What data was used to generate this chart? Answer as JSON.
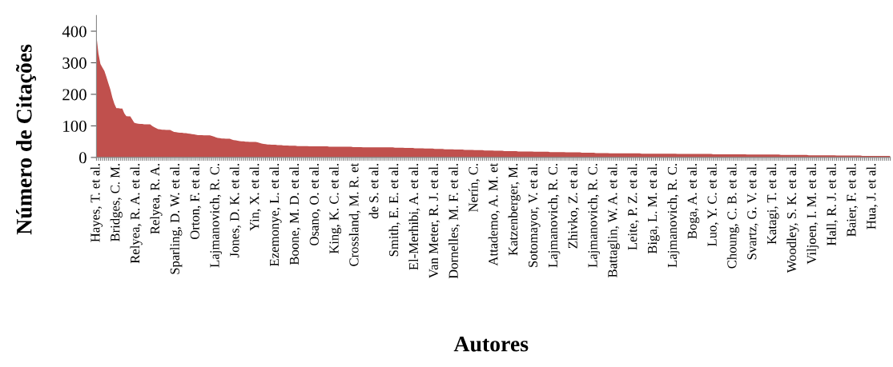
{
  "chart_data": {
    "type": "area",
    "xlabel": "Autores",
    "ylabel": "Número de Citações",
    "color": "#c0504d",
    "ylim": [
      0,
      450
    ],
    "yticks": [
      0,
      100,
      200,
      300,
      400
    ],
    "grid": false,
    "categories": [
      "Hayes, T. et al.",
      null,
      null,
      null,
      null,
      null,
      null,
      null,
      null,
      null,
      "Bridges, C. M.",
      null,
      null,
      null,
      null,
      null,
      null,
      null,
      null,
      null,
      "Relyea, R. A. et al.",
      null,
      null,
      null,
      null,
      null,
      null,
      null,
      null,
      null,
      "Relyea, R. A.",
      null,
      null,
      null,
      null,
      null,
      null,
      null,
      null,
      null,
      "Sparling, D. W. et al.",
      null,
      null,
      null,
      null,
      null,
      null,
      null,
      null,
      null,
      "Orton, F. et al.",
      null,
      null,
      null,
      null,
      null,
      null,
      null,
      null,
      null,
      "Lajmanovich, R. C.",
      null,
      null,
      null,
      null,
      null,
      null,
      null,
      null,
      null,
      "Jones, D. K. et al.",
      null,
      null,
      null,
      null,
      null,
      null,
      null,
      null,
      null,
      "Yin, X. et al.",
      null,
      null,
      null,
      null,
      null,
      null,
      null,
      null,
      null,
      "Ezemonye, L. et al.",
      null,
      null,
      null,
      null,
      null,
      null,
      null,
      null,
      null,
      "Boone, M. D. et al.",
      null,
      null,
      null,
      null,
      null,
      null,
      null,
      null,
      null,
      "Osano, O. et al.",
      null,
      null,
      null,
      null,
      null,
      null,
      null,
      null,
      null,
      "King, K. C. et al.",
      null,
      null,
      null,
      null,
      null,
      null,
      null,
      null,
      null,
      "Crossland, M. R. et",
      null,
      null,
      null,
      null,
      null,
      null,
      null,
      null,
      null,
      "de S. et al.",
      null,
      null,
      null,
      null,
      null,
      null,
      null,
      null,
      null,
      "Smith, E. E. et al.",
      null,
      null,
      null,
      null,
      null,
      null,
      null,
      null,
      null,
      "El-Merhibi, A. et al.",
      null,
      null,
      null,
      null,
      null,
      null,
      null,
      null,
      null,
      "Van Meter, R. J. et al.",
      null,
      null,
      null,
      null,
      null,
      null,
      null,
      null,
      null,
      "Dornelles, M. F. et al.",
      null,
      null,
      null,
      null,
      null,
      null,
      null,
      null,
      null,
      "Nerín, C.",
      null,
      null,
      null,
      null,
      null,
      null,
      null,
      null,
      null,
      "Attademo, A. M. et",
      null,
      null,
      null,
      null,
      null,
      null,
      null,
      null,
      null,
      "Katzenberger, M.",
      null,
      null,
      null,
      null,
      null,
      null,
      null,
      null,
      null,
      "Sotomayor, V. et al.",
      null,
      null,
      null,
      null,
      null,
      null,
      null,
      null,
      null,
      "Lajmanovich, R. C.",
      null,
      null,
      null,
      null,
      null,
      null,
      null,
      null,
      null,
      "Zhivko, Z. et al.",
      null,
      null,
      null,
      null,
      null,
      null,
      null,
      null,
      null,
      "Lajmanovich, R. C.",
      null,
      null,
      null,
      null,
      null,
      null,
      null,
      null,
      null,
      "Battaglin, W. A. et al.",
      null,
      null,
      null,
      null,
      null,
      null,
      null,
      null,
      null,
      "Leite, P. Z. et al.",
      null,
      null,
      null,
      null,
      null,
      null,
      null,
      null,
      null,
      "Biga, L. M. et al.",
      null,
      null,
      null,
      null,
      null,
      null,
      null,
      null,
      null,
      "Lajmanovich, R. C.",
      null,
      null,
      null,
      null,
      null,
      null,
      null,
      null,
      null,
      "Boga, A. et al.",
      null,
      null,
      null,
      null,
      null,
      null,
      null,
      null,
      null,
      "Luo, Y. C. et al.",
      null,
      null,
      null,
      null,
      null,
      null,
      null,
      null,
      null,
      "Choung, C. B. et al.",
      null,
      null,
      null,
      null,
      null,
      null,
      null,
      null,
      null,
      "Svartz, G. V. et al.",
      null,
      null,
      null,
      null,
      null,
      null,
      null,
      null,
      null,
      "Katagi, T. et al.",
      null,
      null,
      null,
      null,
      null,
      null,
      null,
      null,
      null,
      "Woodley, S. K. et al.",
      null,
      null,
      null,
      null,
      null,
      null,
      null,
      null,
      null,
      "Viljoen, I. M. et al.",
      null,
      null,
      null,
      null,
      null,
      null,
      null,
      null,
      null,
      "Hall, R. J. et al.",
      null,
      null,
      null,
      null,
      null,
      null,
      null,
      null,
      null,
      "Baier, F. et al.",
      null,
      null,
      null,
      null,
      null,
      null,
      null,
      null,
      null,
      "Hua, J. et al.",
      null,
      null,
      null,
      null,
      null,
      null,
      null,
      null,
      null
    ],
    "values": [
      385,
      330,
      296,
      285,
      274,
      255,
      235,
      215,
      190,
      170,
      156,
      156,
      155,
      155,
      140,
      131,
      130,
      130,
      120,
      110,
      108,
      107,
      106,
      106,
      105,
      105,
      105,
      105,
      100,
      96,
      93,
      90,
      89,
      88,
      88,
      87,
      87,
      87,
      84,
      81,
      80,
      79,
      78,
      78,
      77,
      77,
      76,
      75,
      74,
      73,
      72,
      71,
      71,
      71,
      70,
      70,
      70,
      70,
      68,
      66,
      64,
      62,
      61,
      60,
      60,
      59,
      59,
      59,
      57,
      55,
      54,
      53,
      52,
      51,
      51,
      50,
      50,
      49,
      49,
      49,
      49,
      48,
      46,
      44,
      43,
      42,
      41,
      41,
      40,
      40,
      40,
      39,
      39,
      39,
      38,
      38,
      38,
      37,
      37,
      37,
      37,
      36,
      36,
      36,
      36,
      36,
      36,
      35,
      35,
      35,
      35,
      35,
      35,
      35,
      35,
      35,
      35,
      34,
      34,
      34,
      34,
      34,
      34,
      34,
      34,
      34,
      34,
      34,
      34,
      33,
      33,
      33,
      33,
      33,
      32,
      32,
      32,
      32,
      32,
      32,
      32,
      32,
      32,
      32,
      32,
      32,
      32,
      32,
      32,
      32,
      31,
      31,
      31,
      31,
      31,
      30,
      30,
      30,
      30,
      30,
      29,
      29,
      29,
      29,
      29,
      28,
      28,
      28,
      28,
      28,
      27,
      27,
      27,
      27,
      27,
      26,
      26,
      26,
      26,
      26,
      25,
      25,
      25,
      25,
      25,
      24,
      24,
      24,
      24,
      24,
      23,
      23,
      23,
      23,
      23,
      22,
      22,
      22,
      22,
      22,
      21,
      21,
      21,
      21,
      21,
      20,
      20,
      20,
      20,
      20,
      20,
      20,
      19,
      19,
      19,
      19,
      19,
      19,
      19,
      19,
      18,
      18,
      18,
      18,
      18,
      18,
      18,
      18,
      17,
      17,
      17,
      17,
      17,
      17,
      17,
      17,
      16,
      16,
      16,
      16,
      16,
      16,
      16,
      16,
      15,
      15,
      15,
      15,
      15,
      15,
      15,
      14,
      14,
      14,
      14,
      14,
      14,
      14,
      13,
      13,
      13,
      13,
      13,
      13,
      13,
      13,
      13,
      13,
      13,
      13,
      13,
      13,
      13,
      13,
      12,
      12,
      12,
      12,
      12,
      12,
      12,
      12,
      12,
      12,
      12,
      12,
      12,
      12,
      12,
      12,
      12,
      12,
      11,
      11,
      11,
      11,
      11,
      11,
      11,
      11,
      11,
      11,
      11,
      11,
      11,
      11,
      11,
      11,
      11,
      11,
      10,
      10,
      10,
      10,
      10,
      10,
      10,
      10,
      10,
      10,
      10,
      10,
      10,
      10,
      10,
      10,
      10,
      9,
      9,
      9,
      9,
      9,
      9,
      9,
      9,
      9,
      9,
      9,
      9,
      9,
      9,
      9,
      9,
      9,
      8,
      8,
      8,
      8,
      8,
      8,
      8,
      8,
      8,
      8,
      8,
      8,
      8,
      8,
      7,
      7,
      7,
      7,
      7,
      7,
      7,
      7,
      7,
      7,
      7,
      7,
      7,
      7,
      6,
      6,
      6,
      6,
      6,
      6,
      6,
      6,
      6,
      6,
      6,
      6,
      6,
      5,
      5,
      5,
      5,
      5,
      5,
      5,
      5,
      5,
      5,
      5,
      5,
      5,
      5,
      5
    ]
  }
}
